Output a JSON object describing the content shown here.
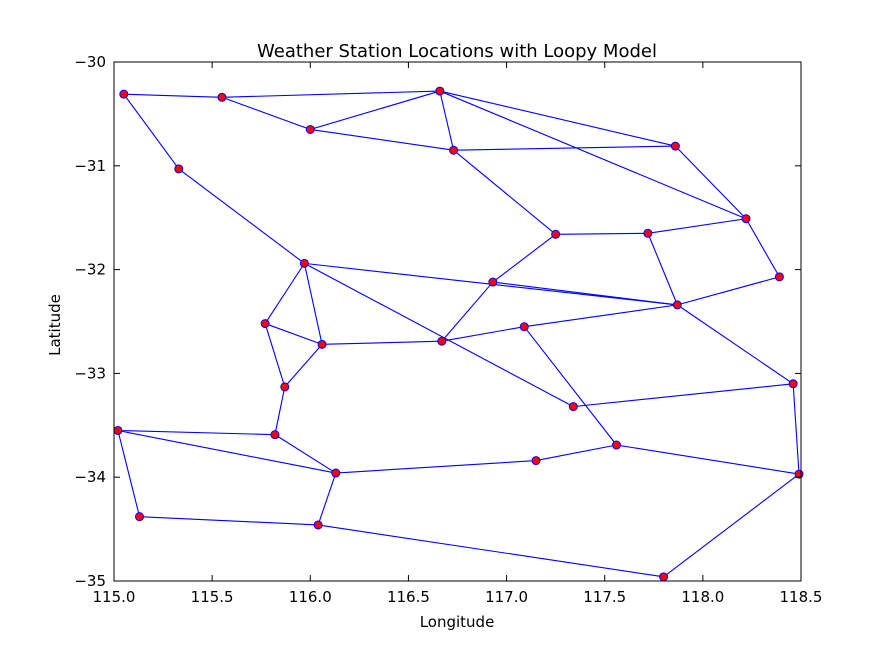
{
  "chart_data": {
    "type": "scatter",
    "title": "Weather Station Locations with Loopy Model",
    "xlabel": "Longitude",
    "ylabel": "Latitude",
    "xlim": [
      115.0,
      118.5
    ],
    "ylim": [
      -35,
      -30
    ],
    "x_ticks": [
      115.0,
      115.5,
      116.0,
      116.5,
      117.0,
      117.5,
      118.0,
      118.5
    ],
    "x_tick_labels": [
      "115.0",
      "115.5",
      "116.0",
      "116.5",
      "117.0",
      "117.5",
      "118.0",
      "118.5"
    ],
    "y_ticks": [
      -30,
      -31,
      -32,
      -33,
      -34,
      -35
    ],
    "y_tick_labels": [
      "−30",
      "−31",
      "−32",
      "−33",
      "−34",
      "−35"
    ],
    "grid": false,
    "colors": {
      "edge": "#0000ff",
      "marker_face": "#ff0000",
      "marker_edge": "#0000ff"
    },
    "points": [
      {
        "x": 115.05,
        "y": -30.31
      },
      {
        "x": 115.55,
        "y": -30.34
      },
      {
        "x": 116.0,
        "y": -30.65
      },
      {
        "x": 116.66,
        "y": -30.28
      },
      {
        "x": 116.73,
        "y": -30.85
      },
      {
        "x": 117.86,
        "y": -30.81
      },
      {
        "x": 115.33,
        "y": -31.03
      },
      {
        "x": 118.22,
        "y": -31.51
      },
      {
        "x": 117.25,
        "y": -31.66
      },
      {
        "x": 117.72,
        "y": -31.65
      },
      {
        "x": 115.97,
        "y": -31.94
      },
      {
        "x": 116.93,
        "y": -32.12
      },
      {
        "x": 118.39,
        "y": -32.07
      },
      {
        "x": 117.87,
        "y": -32.34
      },
      {
        "x": 115.77,
        "y": -32.52
      },
      {
        "x": 117.09,
        "y": -32.55
      },
      {
        "x": 116.06,
        "y": -32.72
      },
      {
        "x": 116.67,
        "y": -32.69
      },
      {
        "x": 115.87,
        "y": -33.13
      },
      {
        "x": 118.46,
        "y": -33.1
      },
      {
        "x": 117.34,
        "y": -33.32
      },
      {
        "x": 115.02,
        "y": -33.55
      },
      {
        "x": 115.82,
        "y": -33.59
      },
      {
        "x": 117.56,
        "y": -33.69
      },
      {
        "x": 117.15,
        "y": -33.84
      },
      {
        "x": 116.13,
        "y": -33.96
      },
      {
        "x": 118.49,
        "y": -33.97
      },
      {
        "x": 115.13,
        "y": -34.38
      },
      {
        "x": 116.04,
        "y": -34.46
      },
      {
        "x": 117.8,
        "y": -34.96
      }
    ],
    "edges": [
      [
        0,
        1
      ],
      [
        1,
        3
      ],
      [
        0,
        6
      ],
      [
        1,
        2
      ],
      [
        2,
        3
      ],
      [
        3,
        4
      ],
      [
        3,
        5
      ],
      [
        3,
        7
      ],
      [
        2,
        4
      ],
      [
        4,
        5
      ],
      [
        4,
        8
      ],
      [
        5,
        7
      ],
      [
        8,
        9
      ],
      [
        9,
        7
      ],
      [
        7,
        12
      ],
      [
        8,
        11
      ],
      [
        6,
        10
      ],
      [
        10,
        13
      ],
      [
        10,
        14
      ],
      [
        10,
        16
      ],
      [
        10,
        20
      ],
      [
        11,
        13
      ],
      [
        11,
        17
      ],
      [
        9,
        13
      ],
      [
        12,
        13
      ],
      [
        13,
        19
      ],
      [
        14,
        16
      ],
      [
        14,
        18
      ],
      [
        16,
        18
      ],
      [
        16,
        17
      ],
      [
        17,
        15
      ],
      [
        15,
        13
      ],
      [
        15,
        23
      ],
      [
        18,
        22
      ],
      [
        22,
        21
      ],
      [
        21,
        25
      ],
      [
        21,
        27
      ],
      [
        22,
        25
      ],
      [
        20,
        19
      ],
      [
        19,
        26
      ],
      [
        23,
        24
      ],
      [
        24,
        25
      ],
      [
        23,
        26
      ],
      [
        25,
        28
      ],
      [
        27,
        28
      ],
      [
        28,
        29
      ],
      [
        29,
        26
      ]
    ]
  }
}
